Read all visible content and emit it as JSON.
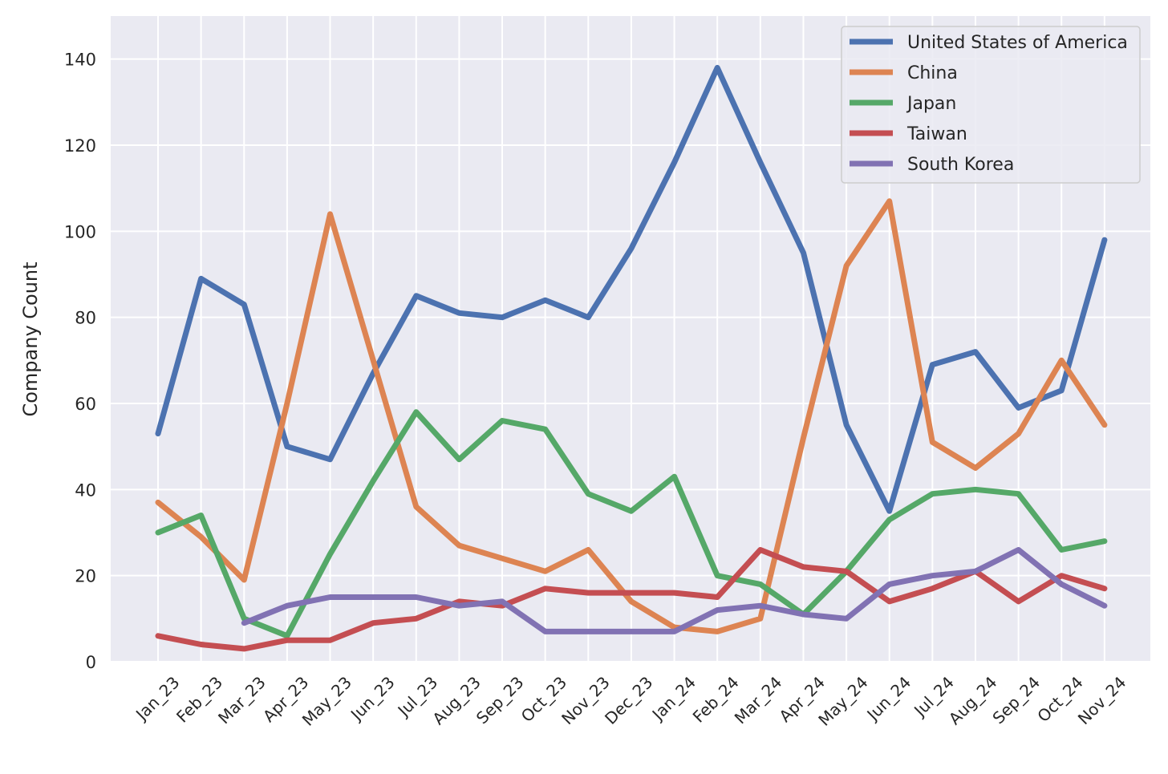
{
  "chart_data": {
    "type": "line",
    "xlabel": "",
    "ylabel": "Company Count",
    "ylim": [
      0,
      150
    ],
    "yticks": [
      0,
      20,
      40,
      60,
      80,
      100,
      120,
      140
    ],
    "grid": true,
    "legend_position": "top-right",
    "categories": [
      "Jan_23",
      "Feb_23",
      "Mar_23",
      "Apr_23",
      "May_23",
      "Jun_23",
      "Jul_23",
      "Aug_23",
      "Sep_23",
      "Oct_23",
      "Nov_23",
      "Dec_23",
      "Jan_24",
      "Feb_24",
      "Mar_24",
      "Apr_24",
      "May_24",
      "Jun_24",
      "Jul_24",
      "Aug_24",
      "Sep_24",
      "Oct_24",
      "Nov_24"
    ],
    "series": [
      {
        "name": "United States of America",
        "color": "#4c72b0",
        "values": [
          53,
          89,
          83,
          50,
          47,
          67,
          85,
          81,
          80,
          84,
          80,
          96,
          116,
          138,
          116,
          95,
          55,
          35,
          69,
          72,
          59,
          63,
          98
        ]
      },
      {
        "name": "China",
        "color": "#dd8452",
        "values": [
          37,
          29,
          19,
          60,
          104,
          70,
          36,
          27,
          24,
          21,
          26,
          14,
          8,
          7,
          10,
          52,
          92,
          107,
          51,
          45,
          53,
          70,
          55
        ]
      },
      {
        "name": "Japan",
        "color": "#55a868",
        "values": [
          30,
          34,
          10,
          6,
          25,
          42,
          58,
          47,
          56,
          54,
          39,
          35,
          43,
          20,
          18,
          11,
          21,
          33,
          39,
          40,
          39,
          26,
          28
        ]
      },
      {
        "name": "Taiwan",
        "color": "#c44e52",
        "values": [
          6,
          4,
          3,
          5,
          5,
          9,
          10,
          14,
          13,
          17,
          16,
          16,
          16,
          15,
          26,
          22,
          21,
          14,
          17,
          21,
          14,
          20,
          17
        ]
      },
      {
        "name": "South Korea",
        "color": "#8172b3",
        "values": [
          null,
          null,
          9,
          13,
          15,
          15,
          15,
          13,
          14,
          7,
          7,
          7,
          7,
          12,
          13,
          11,
          10,
          18,
          20,
          21,
          26,
          18,
          13
        ]
      }
    ]
  }
}
